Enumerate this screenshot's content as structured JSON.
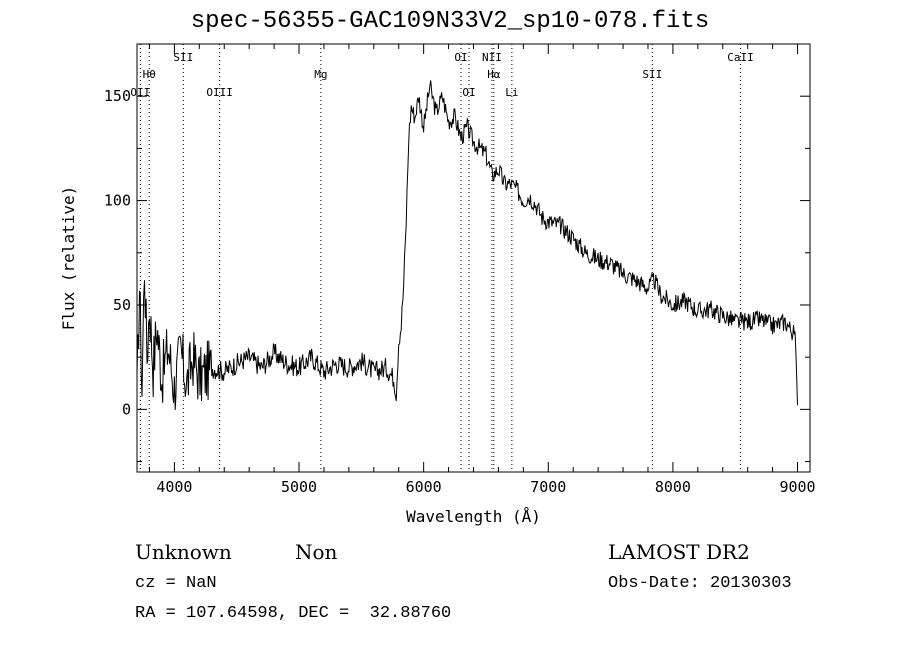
{
  "chart_data": {
    "type": "line",
    "title": "spec-56355-GAC109N33V2_sp10-078.fits",
    "xlabel": "Wavelength (Å)",
    "ylabel": "Flux (relative)",
    "xlim": [
      3700,
      9100
    ],
    "ylim": [
      -30,
      175
    ],
    "xticks": [
      4000,
      5000,
      6000,
      7000,
      8000,
      9000
    ],
    "yticks": [
      0,
      50,
      100,
      150
    ],
    "grid": false,
    "series": [
      {
        "x": [
          3700,
          3720,
          3740,
          3760,
          3780,
          3800,
          3830,
          3860,
          3900,
          3950,
          4000,
          4050,
          4100,
          4150,
          4200,
          4300,
          4400,
          4500,
          4600,
          4700,
          4800,
          4900,
          5000,
          5100,
          5200,
          5300,
          5400,
          5500,
          5600,
          5700,
          5760,
          5780,
          5800,
          5820,
          5840,
          5860,
          5880,
          5900,
          5930,
          5960,
          6000,
          6050,
          6100,
          6150,
          6200,
          6250,
          6300,
          6350,
          6400,
          6450,
          6500,
          6550,
          6600,
          6650,
          6700,
          6750,
          6800,
          6850,
          6900,
          6950,
          7000,
          7100,
          7200,
          7300,
          7400,
          7500,
          7600,
          7700,
          7800,
          7850,
          7900,
          8000,
          8100,
          8200,
          8300,
          8400,
          8500,
          8600,
          8700,
          8800,
          8850,
          8900,
          8950,
          8980,
          9000
        ],
        "y": [
          5,
          60,
          10,
          70,
          25,
          50,
          20,
          40,
          15,
          30,
          10,
          28,
          12,
          25,
          15,
          20,
          18,
          22,
          25,
          20,
          27,
          22,
          20,
          25,
          18,
          22,
          20,
          23,
          18,
          20,
          15,
          8,
          33,
          40,
          60,
          90,
          130,
          145,
          140,
          150,
          135,
          155,
          142,
          150,
          138,
          140,
          130,
          135,
          128,
          125,
          122,
          112,
          115,
          108,
          108,
          105,
          100,
          102,
          98,
          92,
          90,
          88,
          82,
          75,
          72,
          70,
          65,
          62,
          58,
          62,
          55,
          50,
          52,
          47,
          48,
          45,
          42,
          42,
          43,
          40,
          41,
          42,
          38,
          35,
          2
        ]
      }
    ],
    "annotations": [
      {
        "label": "Hθ",
        "x": 3798
      },
      {
        "label": "OII",
        "x": 3727
      },
      {
        "label": "SII",
        "x": 4072
      },
      {
        "label": "OIII",
        "x": 4363
      },
      {
        "label": "Mg",
        "x": 5175
      },
      {
        "label": "OI",
        "x": 6300
      },
      {
        "label": "OI",
        "x": 6364
      },
      {
        "label": "NII",
        "x": 6548
      },
      {
        "label": "Hα",
        "x": 6563
      },
      {
        "label": "Li",
        "x": 6708
      },
      {
        "label": "SII",
        "x": 7835
      },
      {
        "label": "CaII",
        "x": 8542
      }
    ]
  },
  "footer": {
    "class_label": "Unknown",
    "subclass_label": "Non",
    "survey": "LAMOST DR2",
    "cz": "cz = NaN",
    "obs_date": "Obs-Date: 20130303",
    "coords": "RA = 107.64598, DEC =  32.88760"
  }
}
